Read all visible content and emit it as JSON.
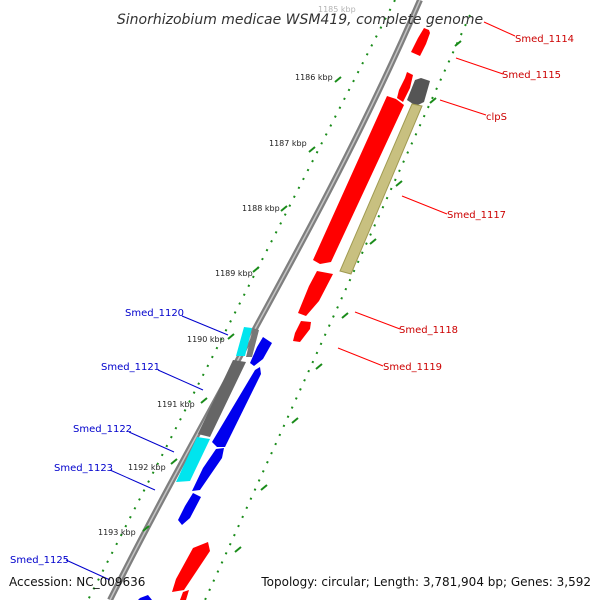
{
  "title": "Sinorhizobium medicae WSM419, complete genome",
  "footer": {
    "accession": "Accession: NC_009636",
    "topology": "Topology: circular; Length: 3,781,904 bp; Genes: 3,592"
  },
  "ruler": {
    "faded_label": "1185 kbp",
    "ticks": [
      "1186 kbp",
      "1187 kbp",
      "1188 kbp",
      "1189 kbp",
      "1190 kbp",
      "1191 kbp",
      "1192 kbp",
      "1193 kbp"
    ]
  },
  "genes_forward": [
    "Smed_1114",
    "Smed_1115",
    "clpS",
    "Smed_1117",
    "Smed_1118",
    "Smed_1119"
  ],
  "genes_reverse": [
    "Smed_1120",
    "Smed_1121",
    "Smed_1122",
    "Smed_1123",
    "Smed_1125"
  ],
  "colors": {
    "forward_cds": "#ff0000",
    "reverse_cds": "#0000ee",
    "rna": "#c8c080",
    "gray_feature": "#666666",
    "cyan_feature": "#00e5ee",
    "backbone": "#888888",
    "tick_green": "#108010"
  }
}
